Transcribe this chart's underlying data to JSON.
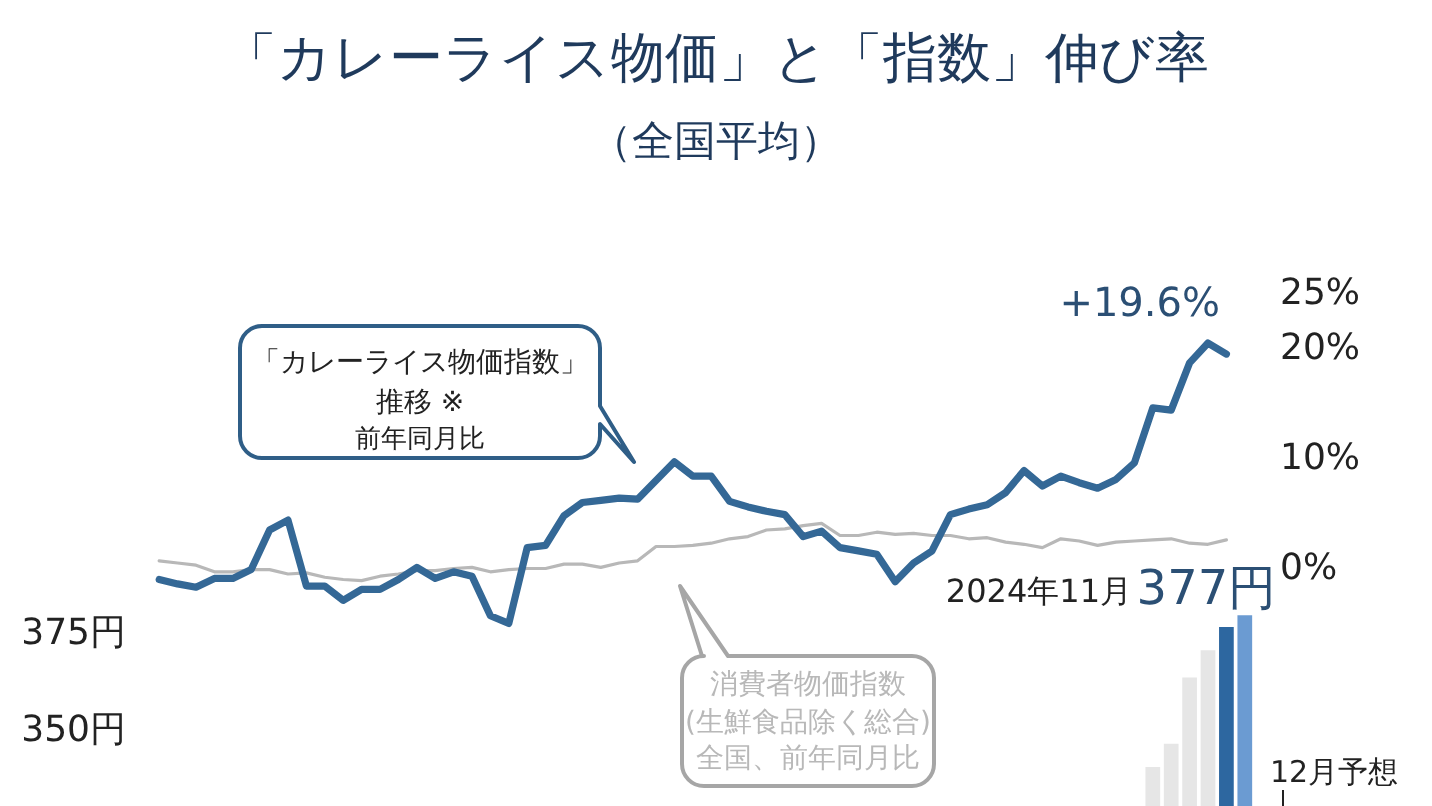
{
  "chart_data": {
    "type": "line",
    "title": "「カレーライス物価」と「指数」伸び率",
    "subtitle": "（全国平均）",
    "categories": [
      null,
      null,
      null,
      null,
      null,
      null,
      null,
      null,
      null,
      null,
      null,
      null,
      null,
      null,
      null,
      null,
      null,
      null,
      null,
      null,
      null,
      null,
      null,
      null,
      null,
      null,
      null,
      null,
      null,
      null,
      null,
      null,
      null,
      null,
      null,
      null,
      null,
      null,
      null,
      null,
      null,
      null,
      null,
      null,
      null,
      null,
      null,
      null,
      null,
      null,
      null,
      null,
      null,
      null,
      null,
      null,
      null,
      null,
      null,
      null
    ],
    "series": [
      {
        "name": "「カレーライス物価指数」推移 ※前年同月比",
        "color": "#346896",
        "axis": "y",
        "values": [
          -0.9,
          -1.3,
          -1.6,
          -0.8,
          -0.8,
          0.0,
          3.6,
          4.5,
          -1.5,
          -1.5,
          -2.8,
          -1.8,
          -1.8,
          -0.9,
          0.2,
          -0.8,
          -0.2,
          -0.6,
          -4.2,
          -4.9,
          2.0,
          2.2,
          4.9,
          6.1,
          6.3,
          6.5,
          6.4,
          8.1,
          9.8,
          8.5,
          8.5,
          6.2,
          5.7,
          5.3,
          5.0,
          3.0,
          3.5,
          2.0,
          1.7,
          1.4,
          -1.1,
          0.6,
          1.7,
          5.0,
          5.5,
          5.9,
          7.0,
          9.0,
          7.6,
          8.5,
          7.9,
          7.4,
          8.2,
          9.7,
          14.7,
          14.5,
          18.8,
          20.6,
          19.6,
          null
        ]
      },
      {
        "name": "消費者物価指数(生鮮食品除く総合)全国、前年同月比",
        "color": "#b8b8b8",
        "axis": "y",
        "values": [
          0.8,
          0.6,
          0.4,
          -0.2,
          -0.2,
          0.0,
          0.0,
          -0.4,
          -0.3,
          -0.7,
          -0.9,
          -1.0,
          -0.6,
          -0.4,
          -0.1,
          -0.1,
          0.1,
          0.2,
          -0.2,
          0.0,
          0.1,
          0.1,
          0.5,
          0.5,
          0.2,
          0.6,
          0.8,
          2.1,
          2.1,
          2.2,
          2.4,
          2.8,
          3.0,
          3.6,
          3.7,
          4.0,
          4.2,
          3.1,
          3.1,
          3.4,
          3.2,
          3.3,
          3.1,
          3.1,
          2.8,
          2.9,
          2.5,
          2.3,
          2.0,
          2.8,
          2.6,
          2.2,
          2.5,
          2.6,
          2.7,
          2.8,
          2.4,
          2.3,
          2.7,
          null
        ]
      },
      {
        "type": "bar",
        "axis": "y2",
        "colors": [
          "#e6e6e6",
          "#e6e6e6",
          "#e6e6e6",
          "#e6e6e6",
          "#e6e6e6",
          "#e6e6e6",
          "#e6e6e6",
          "#e6e6e6",
          "#e6e6e6",
          "#e6e6e6",
          "#e6e6e6",
          "#e6e6e6",
          "#e6e6e6",
          "#e6e6e6",
          "#e6e6e6",
          "#e6e6e6",
          "#e6e6e6",
          "#e6e6e6",
          "#e6e6e6",
          "#e6e6e6",
          "#e6e6e6",
          "#e6e6e6",
          "#e6e6e6",
          "#e6e6e6",
          "#e6e6e6",
          "#e6e6e6",
          "#e6e6e6",
          "#e6e6e6",
          "#e6e6e6",
          "#e6e6e6",
          "#e6e6e6",
          "#e6e6e6",
          "#e6e6e6",
          "#e6e6e6",
          "#e6e6e6",
          "#e6e6e6",
          "#e6e6e6",
          "#e6e6e6",
          "#e6e6e6",
          "#e6e6e6",
          "#e6e6e6",
          "#e6e6e6",
          "#e6e6e6",
          "#e6e6e6",
          "#e6e6e6",
          "#e6e6e6",
          "#e6e6e6",
          "#e6e6e6",
          "#e6e6e6",
          "#e6e6e6",
          "#e6e6e6",
          "#e6e6e6",
          "#e6e6e6",
          "#e6e6e6",
          "#e6e6e6",
          "#e6e6e6",
          "#e6e6e6",
          "#e6e6e6",
          "#2d67a0",
          "#6b9bd2"
        ],
        "values": [
          null,
          null,
          null,
          null,
          null,
          null,
          null,
          null,
          null,
          null,
          null,
          null,
          null,
          null,
          null,
          null,
          null,
          null,
          null,
          null,
          null,
          null,
          null,
          null,
          null,
          null,
          null,
          null,
          null,
          null,
          null,
          null,
          null,
          null,
          null,
          null,
          null,
          null,
          null,
          null,
          null,
          null,
          null,
          null,
          null,
          null,
          null,
          null,
          null,
          null,
          null,
          null,
          null,
          null,
          341,
          347,
          364,
          371,
          377,
          380
        ],
        "value_labels": [
          null,
          null,
          null,
          null,
          null,
          null,
          null,
          null,
          null,
          null,
          null,
          null,
          null,
          null,
          null,
          null,
          null,
          null,
          null,
          null,
          null,
          null,
          null,
          null,
          null,
          null,
          null,
          null,
          null,
          null,
          null,
          null,
          null,
          null,
          null,
          null,
          null,
          null,
          null,
          null,
          null,
          null,
          null,
          null,
          null,
          null,
          null,
          null,
          null,
          null,
          null,
          null,
          null,
          null,
          null,
          null,
          null,
          null,
          "377円",
          null
        ]
      }
    ],
    "ylim": [
      -21.5,
      51.8
    ],
    "yticks": [
      {
        "value": 0,
        "label": "0%"
      },
      {
        "value": 10,
        "label": "10%"
      },
      {
        "value": 20,
        "label": "20%"
      },
      {
        "value": 25,
        "label": "25%"
      }
    ],
    "y2lim": [
      331,
      538
    ],
    "y2ticks": [
      {
        "value": 350,
        "label": "350円"
      },
      {
        "value": 375,
        "label": "375円"
      }
    ],
    "annotations": [
      "+19.6%",
      "2024年11月",
      "12月予想"
    ]
  }
}
